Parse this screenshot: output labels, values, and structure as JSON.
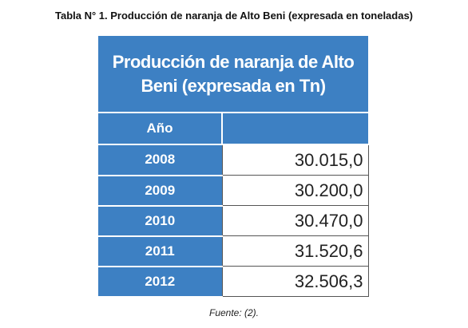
{
  "caption": "Tabla N° 1. Producción de naranja de Alto Beni (expresada en toneladas)",
  "table": {
    "title": "Producción de naranja de Alto Beni (expresada en Tn)",
    "header": [
      "Año",
      ""
    ],
    "rows": [
      [
        "2008",
        "30.015,0"
      ],
      [
        "2009",
        "30.200,0"
      ],
      [
        "2010",
        "30.470,0"
      ],
      [
        "2011",
        "31.520,6"
      ],
      [
        "2012",
        "32.506,3"
      ]
    ]
  },
  "source": "Fuente: (2)."
}
